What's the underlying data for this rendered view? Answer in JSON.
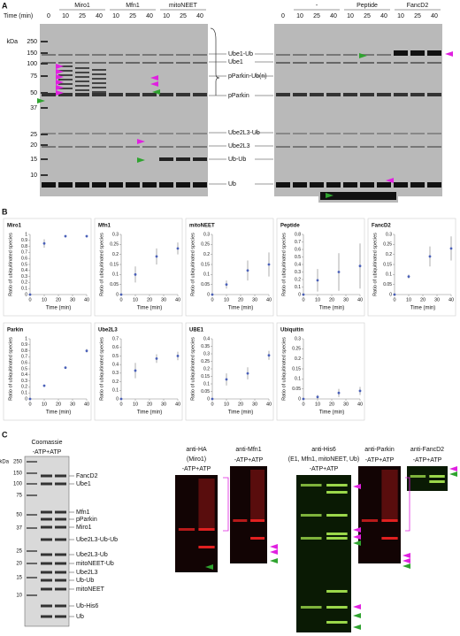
{
  "panel_a": {
    "label": "A",
    "time_label": "Time (min)",
    "kda_label": "kDa",
    "gels": [
      {
        "first_lane": 0,
        "groups": [
          {
            "name": "Miro1",
            "lanes": [
              10,
              25,
              40
            ]
          },
          {
            "name": "Mfn1",
            "lanes": [
              10,
              25,
              40
            ]
          },
          {
            "name": "mitoNEET",
            "lanes": [
              10,
              25,
              40
            ]
          }
        ]
      },
      {
        "first_lane": 0,
        "groups": [
          {
            "name": "-",
            "lanes": [
              10,
              25,
              40
            ]
          },
          {
            "name": "Peptide",
            "lanes": [
              10,
              25,
              40
            ]
          },
          {
            "name": "FancD2",
            "lanes": [
              10,
              25,
              40
            ]
          }
        ]
      }
    ],
    "markers": [
      250,
      150,
      100,
      75,
      50,
      37,
      25,
      20,
      15,
      10
    ],
    "bands": [
      "Ube1-Ub",
      "Ube1",
      "pParkin-Ub(n)",
      "pParkin",
      "Ube2L3-Ub",
      "Ube2L3",
      "Ub-Ub",
      "Ub"
    ]
  },
  "panel_b_label": "B",
  "chart_data": [
    {
      "type": "scatter",
      "title": "Miro1",
      "x": [
        0,
        10,
        25,
        40
      ],
      "values": [
        0,
        0.85,
        0.97,
        0.97
      ],
      "errors": [
        0,
        0.07,
        0.01,
        0.01
      ],
      "color": "#4a60b8",
      "xlim": [
        0,
        40
      ],
      "xticks": [
        0,
        10,
        20,
        30,
        40
      ],
      "ylim": [
        0,
        1
      ],
      "yticks": [
        0,
        0.1,
        0.2,
        0.3,
        0.4,
        0.5,
        0.6,
        0.7,
        0.8,
        0.9,
        1
      ],
      "xlabel": "Time (min)",
      "ylabel": "Ratio of ubiquitinated species"
    },
    {
      "type": "scatter",
      "title": "Mfn1",
      "x": [
        0,
        10,
        25,
        40
      ],
      "values": [
        0,
        0.1,
        0.19,
        0.23
      ],
      "errors": [
        0,
        0.04,
        0.04,
        0.03
      ],
      "color": "#4a60b8",
      "xlim": [
        0,
        40
      ],
      "xticks": [
        0,
        10,
        20,
        30,
        40
      ],
      "ylim": [
        0,
        0.3
      ],
      "yticks": [
        0,
        0.05,
        0.1,
        0.15,
        0.2,
        0.25,
        0.3
      ],
      "xlabel": "Time (min)",
      "ylabel": "Ratio of ubiquitinated species"
    },
    {
      "type": "scatter",
      "title": "mitoNEET",
      "x": [
        0,
        10,
        25,
        40
      ],
      "values": [
        0,
        0.05,
        0.12,
        0.15
      ],
      "errors": [
        0,
        0.02,
        0.05,
        0.06
      ],
      "color": "#4a60b8",
      "xlim": [
        0,
        40
      ],
      "xticks": [
        0,
        10,
        20,
        30,
        40
      ],
      "ylim": [
        0,
        0.3
      ],
      "yticks": [
        0,
        0.05,
        0.1,
        0.15,
        0.2,
        0.25,
        0.3
      ],
      "xlabel": "Time (min)",
      "ylabel": "Ratio of ubiquitinated species"
    },
    {
      "type": "scatter",
      "title": "Peptide",
      "x": [
        0,
        10,
        25,
        40
      ],
      "values": [
        0,
        0.19,
        0.3,
        0.38
      ],
      "errors": [
        0,
        0.15,
        0.25,
        0.3
      ],
      "color": "#4a60b8",
      "xlim": [
        0,
        40
      ],
      "xticks": [
        0,
        10,
        20,
        30,
        40
      ],
      "ylim": [
        0,
        0.8
      ],
      "yticks": [
        0,
        0.1,
        0.2,
        0.3,
        0.4,
        0.5,
        0.6,
        0.7,
        0.8
      ],
      "xlabel": "Time (min)",
      "ylabel": "Ratio of ubiquitinated species"
    },
    {
      "type": "scatter",
      "title": "FancD2",
      "x": [
        0,
        10,
        25,
        40
      ],
      "values": [
        0,
        0.09,
        0.19,
        0.23
      ],
      "errors": [
        0,
        0.01,
        0.05,
        0.06
      ],
      "color": "#4a60b8",
      "xlim": [
        0,
        40
      ],
      "xticks": [
        0,
        10,
        20,
        30,
        40
      ],
      "ylim": [
        0,
        0.3
      ],
      "yticks": [
        0,
        0.05,
        0.1,
        0.15,
        0.2,
        0.25,
        0.3
      ],
      "xlabel": "Time (min)",
      "ylabel": "Ratio of ubiquitinated species"
    },
    {
      "type": "scatter",
      "title": "Parkin",
      "x": [
        0,
        10,
        25,
        40
      ],
      "values": [
        0,
        0.22,
        0.52,
        0.8
      ],
      "errors": [
        0,
        0.01,
        0.02,
        0.03
      ],
      "color": "#4a60b8",
      "xlim": [
        0,
        40
      ],
      "xticks": [
        0,
        10,
        20,
        30,
        40
      ],
      "ylim": [
        0,
        1
      ],
      "yticks": [
        0,
        0.1,
        0.2,
        0.3,
        0.4,
        0.5,
        0.6,
        0.7,
        0.8,
        0.9,
        1
      ],
      "xlabel": "Time (min)",
      "ylabel": "Ratio of ubiquitinated species"
    },
    {
      "type": "scatter",
      "title": "Ube2L3",
      "x": [
        0,
        10,
        25,
        40
      ],
      "values": [
        0,
        0.33,
        0.47,
        0.5
      ],
      "errors": [
        0,
        0.09,
        0.05,
        0.05
      ],
      "color": "#4a60b8",
      "xlim": [
        0,
        40
      ],
      "xticks": [
        0,
        10,
        20,
        30,
        40
      ],
      "ylim": [
        0,
        0.7
      ],
      "yticks": [
        0,
        0.1,
        0.2,
        0.3,
        0.4,
        0.5,
        0.6,
        0.7
      ],
      "xlabel": "Time (min)",
      "ylabel": "Ratio of ubiquitinated species"
    },
    {
      "type": "scatter",
      "title": "UBE1",
      "x": [
        0,
        10,
        25,
        40
      ],
      "values": [
        0,
        0.13,
        0.17,
        0.29
      ],
      "errors": [
        0,
        0.04,
        0.04,
        0.03
      ],
      "color": "#4a60b8",
      "xlim": [
        0,
        40
      ],
      "xticks": [
        0,
        10,
        20,
        30,
        40
      ],
      "ylim": [
        0,
        0.4
      ],
      "yticks": [
        0,
        0.05,
        0.1,
        0.15,
        0.2,
        0.25,
        0.3,
        0.35,
        0.4
      ],
      "xlabel": "Time (min)",
      "ylabel": "Ratio of ubiquitinated species"
    },
    {
      "type": "scatter",
      "title": "Ubiquitin",
      "x": [
        0,
        10,
        25,
        40
      ],
      "values": [
        0,
        0.01,
        0.03,
        0.04
      ],
      "errors": [
        0,
        0.01,
        0.02,
        0.02
      ],
      "color": "#4a60b8",
      "xlim": [
        0,
        40
      ],
      "xticks": [
        0,
        10,
        20,
        30,
        40
      ],
      "ylim": [
        0,
        0.3
      ],
      "yticks": [
        0,
        0.05,
        0.1,
        0.15,
        0.2,
        0.25,
        0.3
      ],
      "xlabel": "Time (min)",
      "ylabel": "Ratio of ubiquitinated species"
    }
  ],
  "panel_c": {
    "label": "C",
    "coomassie": {
      "title": "Coomassie",
      "lanes": "-ATP+ATP",
      "kda_label": "kDa",
      "markers": [
        250,
        150,
        100,
        75,
        50,
        37,
        25,
        20,
        15,
        10
      ],
      "bands": [
        "FancD2",
        "Ube1",
        "Mfn1",
        "pParkin",
        "Miro1",
        "Ube2L3-Ub-Ub",
        "Ube2L3-Ub",
        "mitoNEET-Ub",
        "Ube2L3",
        "Ub-Ub",
        "mitoNEET",
        "Ub-His6",
        "Ub"
      ]
    },
    "blots": [
      {
        "title": "anti-HA",
        "subtitle": "(Miro1)",
        "lanes": "-ATP+ATP"
      },
      {
        "title": "anti-Mfn1",
        "lanes": "-ATP+ATP"
      },
      {
        "title": "anti-His6",
        "subtitle": "(E1, Mfn1, mitoNEET, Ub)",
        "lanes": "-ATP+ATP"
      },
      {
        "title": "anti-Parkin",
        "lanes": "-ATP+ATP"
      },
      {
        "title": "anti-FancD2",
        "lanes": "-ATP+ATP"
      }
    ]
  }
}
